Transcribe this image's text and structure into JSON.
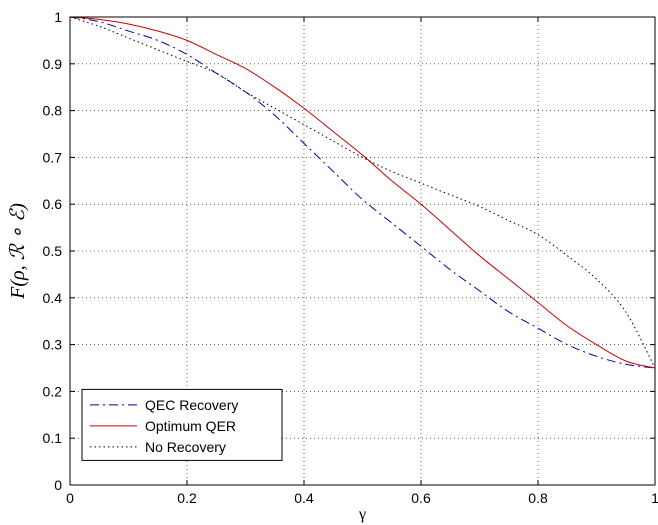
{
  "chart_data": {
    "type": "line",
    "xlabel": "γ",
    "ylabel": "F(ρ, ℛ ∘ ℰ)",
    "xlim": [
      0,
      1
    ],
    "ylim": [
      0,
      1
    ],
    "xticks": [
      "0",
      "0.2",
      "0.4",
      "0.6",
      "0.8",
      "1"
    ],
    "yticks": [
      "0",
      "0.1",
      "0.2",
      "0.3",
      "0.4",
      "0.5",
      "0.6",
      "0.7",
      "0.8",
      "0.9",
      "1"
    ],
    "grid": true,
    "legend_position": "bottom-left",
    "x": [
      0,
      0.05,
      0.1,
      0.15,
      0.2,
      0.25,
      0.3,
      0.35,
      0.4,
      0.45,
      0.5,
      0.55,
      0.6,
      0.65,
      0.7,
      0.75,
      0.8,
      0.85,
      0.9,
      0.95,
      1
    ],
    "series": [
      {
        "name": "QEC Recovery",
        "color": "#0000aa",
        "dash": "dashdot",
        "values": [
          1.0,
          0.99,
          0.97,
          0.95,
          0.92,
          0.88,
          0.84,
          0.79,
          0.73,
          0.67,
          0.61,
          0.56,
          0.51,
          0.46,
          0.415,
          0.37,
          0.335,
          0.3,
          0.275,
          0.258,
          0.25
        ]
      },
      {
        "name": "Optimum QER",
        "color": "#cc0000",
        "dash": "solid",
        "values": [
          1.0,
          0.995,
          0.985,
          0.97,
          0.95,
          0.92,
          0.89,
          0.85,
          0.805,
          0.755,
          0.705,
          0.65,
          0.6,
          0.545,
          0.49,
          0.44,
          0.39,
          0.34,
          0.3,
          0.265,
          0.25
        ]
      },
      {
        "name": "No Recovery",
        "color": "#000000",
        "dash": "dotted",
        "values": [
          1.0,
          0.98,
          0.955,
          0.93,
          0.905,
          0.88,
          0.84,
          0.805,
          0.77,
          0.735,
          0.7,
          0.67,
          0.645,
          0.62,
          0.595,
          0.565,
          0.535,
          0.49,
          0.44,
          0.37,
          0.25
        ]
      }
    ]
  }
}
